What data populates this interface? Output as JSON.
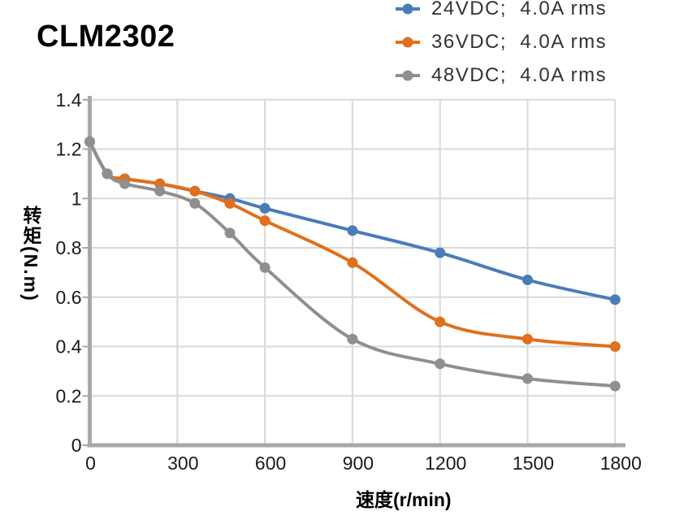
{
  "chart_data": {
    "type": "line",
    "title": "CLM2302",
    "xlabel": "速度(r/min)",
    "ylabel": "转矩(N.m)",
    "xlim": [
      0,
      1800
    ],
    "ylim": [
      0,
      1.4
    ],
    "xticks": [
      0,
      300,
      600,
      900,
      1200,
      1500,
      1800
    ],
    "yticks": [
      0,
      0.2,
      0.4,
      0.6,
      0.8,
      1,
      1.2,
      1.4
    ],
    "grid": true,
    "legend_position": "top-right",
    "marker": "circle",
    "x": [
      0,
      60,
      120,
      240,
      360,
      480,
      600,
      900,
      1200,
      1500,
      1800
    ],
    "series": [
      {
        "name": "24VDC;  4.0A rms",
        "color": "#4A7CB8",
        "values": [
          1.23,
          1.1,
          1.08,
          1.06,
          1.03,
          1.0,
          0.96,
          0.87,
          0.78,
          0.67,
          0.59
        ]
      },
      {
        "name": "36VDC;  4.0A rms",
        "color": "#E0701E",
        "values": [
          1.23,
          1.1,
          1.08,
          1.06,
          1.03,
          0.98,
          0.91,
          0.74,
          0.5,
          0.43,
          0.4
        ]
      },
      {
        "name": "48VDC;  4.0A rms",
        "color": "#8F8F8F",
        "values": [
          1.23,
          1.1,
          1.06,
          1.03,
          0.98,
          0.86,
          0.72,
          0.43,
          0.33,
          0.27,
          0.24
        ]
      }
    ],
    "axis_color": "#A8A8A8",
    "grid_color": "#D9D9D9",
    "tick_text_color": "#1A1A1A"
  }
}
